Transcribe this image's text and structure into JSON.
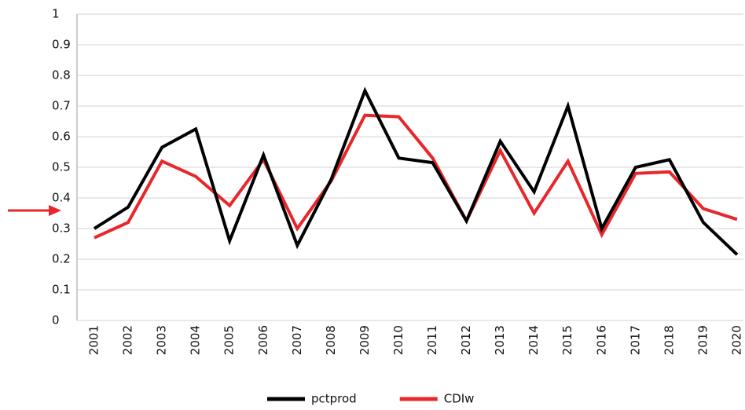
{
  "chart_data": {
    "type": "line",
    "categories": [
      "2001",
      "2002",
      "2003",
      "2004",
      "2005",
      "2006",
      "2007",
      "2008",
      "2009",
      "2010",
      "2011",
      "2012",
      "2013",
      "2014",
      "2015",
      "2016",
      "2017",
      "2018",
      "2019",
      "2020"
    ],
    "series": [
      {
        "name": "pctprod",
        "color": "#000000",
        "values": [
          0.3,
          0.37,
          0.565,
          0.625,
          0.26,
          0.54,
          0.245,
          0.46,
          0.75,
          0.53,
          0.515,
          0.325,
          0.585,
          0.42,
          0.7,
          0.3,
          0.5,
          0.525,
          0.32,
          0.215
        ]
      },
      {
        "name": "CDIw",
        "color": "#e8262b",
        "values": [
          0.27,
          0.32,
          0.52,
          0.47,
          0.375,
          0.525,
          0.3,
          0.455,
          0.67,
          0.665,
          0.53,
          0.325,
          0.555,
          0.35,
          0.52,
          0.28,
          0.48,
          0.485,
          0.365,
          0.33
        ]
      }
    ],
    "ylim": [
      0,
      1
    ],
    "yticks": [
      0,
      0.1,
      0.2,
      0.3,
      0.4,
      0.5,
      0.6,
      0.7,
      0.8,
      0.9,
      1
    ],
    "grid": true,
    "legend": "bottom"
  }
}
